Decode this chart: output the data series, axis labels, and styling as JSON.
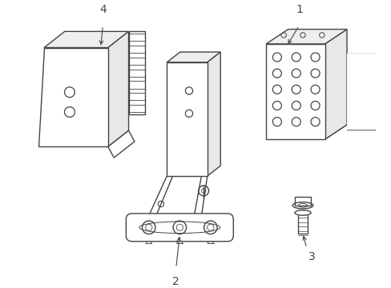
{
  "bg_color": "#ffffff",
  "line_color": "#444444",
  "line_width": 1.0,
  "label_fontsize": 10,
  "figsize": [
    4.89,
    3.6
  ],
  "dpi": 100
}
